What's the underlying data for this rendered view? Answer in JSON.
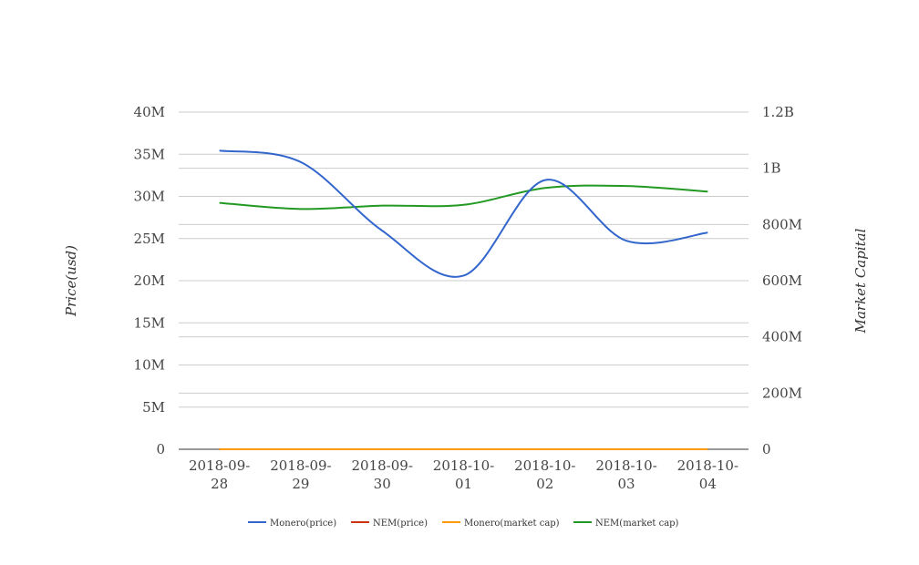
{
  "chart_data": {
    "type": "line",
    "categories": [
      "2018-09-28",
      "2018-09-29",
      "2018-09-30",
      "2018-10-01",
      "2018-10-02",
      "2018-10-03",
      "2018-10-04"
    ],
    "category_lines": [
      [
        "2018-09-",
        "28"
      ],
      [
        "2018-09-",
        "29"
      ],
      [
        "2018-09-",
        "30"
      ],
      [
        "2018-10-",
        "01"
      ],
      [
        "2018-10-",
        "02"
      ],
      [
        "2018-10-",
        "03"
      ],
      [
        "2018-10-",
        "04"
      ]
    ],
    "y_left": {
      "label": "Price(usd)",
      "ylim": [
        0,
        40000000
      ],
      "ticks": [
        0,
        5000000,
        10000000,
        15000000,
        20000000,
        25000000,
        30000000,
        35000000,
        40000000
      ],
      "tick_labels": [
        "0",
        "5M",
        "10M",
        "15M",
        "20M",
        "25M",
        "30M",
        "35M",
        "40M"
      ]
    },
    "y_right": {
      "label": "Market Capital",
      "ylim": [
        0,
        1200000000
      ],
      "ticks": [
        0,
        200000000,
        400000000,
        600000000,
        800000000,
        1000000000,
        1200000000
      ],
      "tick_labels": [
        "0",
        "200M",
        "400M",
        "600M",
        "800M",
        "1B",
        "1.2B"
      ]
    },
    "series": [
      {
        "name": "Monero(price)",
        "axis": "right",
        "color": "#3366cc",
        "values": [
          1063000000,
          1022000000,
          778000000,
          618000000,
          958000000,
          742000000,
          771000000
        ]
      },
      {
        "name": "NEM(price)",
        "axis": "left",
        "color": "#cc3311",
        "values": [
          0,
          0,
          0,
          0,
          0,
          0,
          0
        ]
      },
      {
        "name": "Monero(market cap)",
        "axis": "left",
        "color": "#ff9900",
        "values": [
          0,
          0,
          0,
          0,
          0,
          0,
          0
        ]
      },
      {
        "name": "NEM(market cap)",
        "axis": "right",
        "color": "#229922",
        "values": [
          877000000,
          855000000,
          867000000,
          870000000,
          930000000,
          937000000,
          917000000
        ]
      }
    ],
    "grid": true,
    "legend_position": "bottom-center"
  }
}
